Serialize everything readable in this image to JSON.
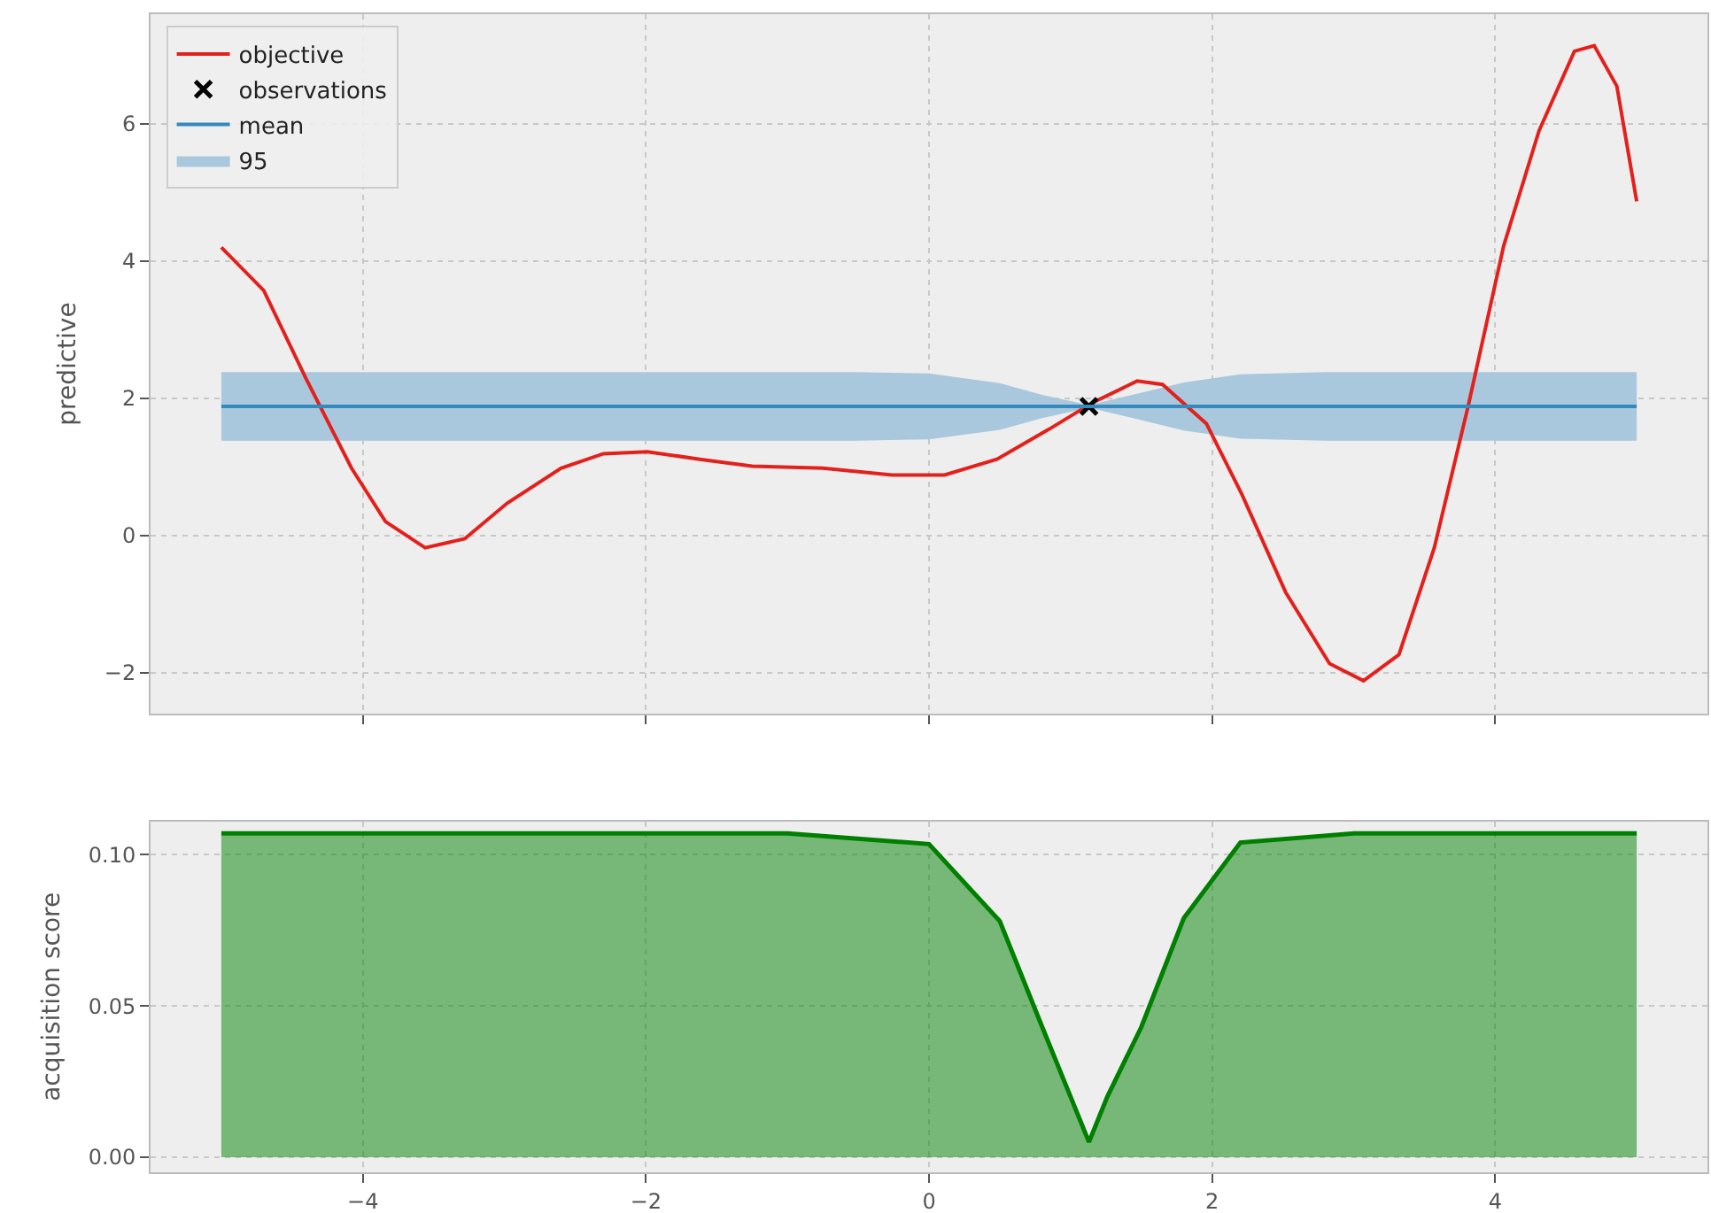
{
  "chart_data": [
    {
      "type": "line",
      "ylabel": "predictive",
      "xlim": [
        -5.5,
        5.5
      ],
      "ylim": [
        -2.6,
        7.6
      ],
      "xticks": [
        -4,
        -2,
        0,
        2,
        4
      ],
      "yticks": [
        -2,
        0,
        2,
        4,
        6
      ],
      "tick_labels": "y",
      "grid": true,
      "legend": "top left",
      "series": [
        {
          "name": "objective",
          "type": "line",
          "color": "#e3211c",
          "x": [
            -5.0,
            -4.7,
            -4.4,
            -4.08,
            -3.84,
            -3.56,
            -3.28,
            -2.98,
            -2.6,
            -2.3,
            -1.99,
            -1.62,
            -1.25,
            -0.75,
            -0.26,
            0.11,
            0.48,
            0.85,
            1.16,
            1.47,
            1.65,
            1.96,
            2.21,
            2.52,
            2.83,
            3.07,
            3.32,
            3.57,
            3.81,
            4.06,
            4.31,
            4.56,
            4.7,
            4.86,
            5.0
          ],
          "values": [
            4.2,
            3.57,
            2.28,
            0.98,
            0.2,
            -0.18,
            -0.05,
            0.47,
            0.98,
            1.19,
            1.22,
            1.11,
            1.01,
            0.98,
            0.88,
            0.88,
            1.11,
            1.55,
            1.94,
            2.25,
            2.2,
            1.63,
            0.6,
            -0.83,
            -1.87,
            -2.12,
            -1.74,
            -0.18,
            1.89,
            4.22,
            5.9,
            7.06,
            7.14,
            6.55,
            4.87
          ]
        },
        {
          "name": "observations",
          "type": "scatter",
          "marker": "cross",
          "color": "#000000",
          "x": [
            1.13
          ],
          "values": [
            1.88
          ]
        },
        {
          "name": "mean",
          "type": "line",
          "color": "#348abd",
          "x": [
            -5.0,
            5.0
          ],
          "values": [
            1.88,
            1.88
          ]
        },
        {
          "name": "95",
          "type": "area",
          "color": "#a9c8de",
          "x": [
            -5.0,
            -0.5,
            0.0,
            0.5,
            0.8,
            1.13,
            1.5,
            1.8,
            2.2,
            2.8,
            5.0
          ],
          "values": [
            null,
            null,
            null,
            null,
            null,
            null,
            null,
            null,
            null,
            null,
            null
          ],
          "lower": [
            1.38,
            1.38,
            1.4,
            1.54,
            1.71,
            1.86,
            1.68,
            1.53,
            1.41,
            1.38,
            1.38
          ],
          "upper": [
            2.38,
            2.38,
            2.36,
            2.22,
            2.05,
            1.9,
            2.08,
            2.23,
            2.35,
            2.38,
            2.38
          ]
        }
      ]
    },
    {
      "type": "area",
      "ylabel": "acquisition score",
      "xlim": [
        -5.5,
        5.5
      ],
      "ylim": [
        -0.005,
        0.111
      ],
      "xticks": [
        -4,
        -2,
        0,
        2,
        4
      ],
      "yticks": [
        {
          "value": 0,
          "label": "0.00"
        },
        0.05,
        {
          "value": 0.1,
          "label": "0.10"
        }
      ],
      "grid": true,
      "series": [
        {
          "color": "#008000",
          "x": [
            -5.0,
            -1.0,
            0.0,
            0.5,
            0.8,
            1.0,
            1.13,
            1.26,
            1.5,
            1.8,
            2.2,
            3.0,
            5.0
          ],
          "values": [
            0.107,
            0.107,
            0.1035,
            0.078,
            0.043,
            0.02,
            0.005,
            0.02,
            0.043,
            0.079,
            0.104,
            0.107,
            0.107
          ]
        }
      ]
    }
  ]
}
